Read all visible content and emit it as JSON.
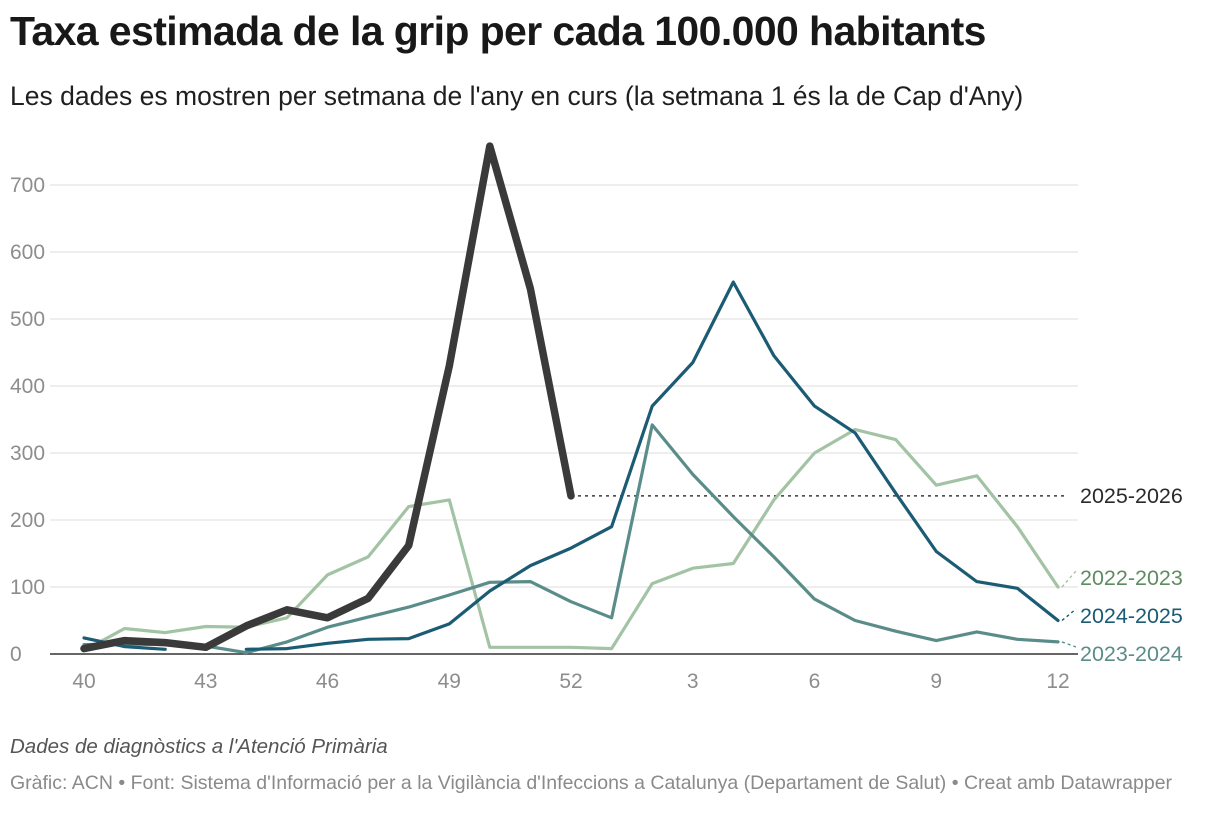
{
  "title": "Taxa estimada de la grip per cada 100.000 habitants",
  "subtitle": "Les dades es mostren per setmana de l'any en curs (la setmana 1 és la de Cap d'Any)",
  "notes": "Dades de diagnòstics a l'Atenció Primària",
  "footer": {
    "text": "Gràfic: ACN • Font: Sistema d'Informació per a la Vigilància d'Infeccions a Catalunya (Departament de Salut) • Creat amb Datawrapper"
  },
  "chart_data": {
    "type": "line",
    "title": "Taxa estimada de la grip per cada 100.000 habitants",
    "subtitle": "Les dades es mostren per setmana de l'any en curs (la setmana 1 és la de Cap d'Any)",
    "x": [
      "40",
      "41",
      "42",
      "43",
      "44",
      "45",
      "46",
      "47",
      "48",
      "49",
      "50",
      "51",
      "52",
      "1",
      "2",
      "3",
      "4",
      "5",
      "6",
      "7",
      "8",
      "9",
      "10",
      "11",
      "12"
    ],
    "x_ticks": [
      "40",
      "43",
      "46",
      "49",
      "52",
      "3",
      "6",
      "9",
      "12"
    ],
    "y_ticks": [
      0,
      100,
      200,
      300,
      400,
      500,
      600,
      700
    ],
    "ylim": [
      0,
      760
    ],
    "grid": true,
    "series": [
      {
        "name": "2022-2023",
        "color": "#a3c3a5",
        "values": [
          5,
          38,
          32,
          41,
          40,
          54,
          118,
          145,
          220,
          230,
          10,
          10,
          10,
          8,
          105,
          128,
          135,
          230,
          300,
          335,
          320,
          252,
          266,
          190,
          100
        ]
      },
      {
        "name": "2023-2024",
        "color": "#5a8d8a",
        "values": [
          14,
          15,
          14,
          12,
          2,
          18,
          40,
          55,
          70,
          88,
          107,
          108,
          78,
          54,
          342,
          268,
          205,
          145,
          82,
          50,
          34,
          20,
          33,
          22,
          18
        ]
      },
      {
        "name": "2024-2025",
        "color": "#1b5b73",
        "values": [
          24,
          11,
          7,
          null,
          7,
          8,
          16,
          22,
          23,
          45,
          94,
          132,
          158,
          190,
          370,
          435,
          555,
          445,
          370,
          330,
          240,
          153,
          108,
          98,
          50
        ]
      },
      {
        "name": "2025-2026",
        "color": "#3a3a3a",
        "values": [
          8,
          20,
          17,
          10,
          42,
          66,
          54,
          83,
          162,
          430,
          758,
          545,
          236,
          null,
          null,
          null,
          null,
          null,
          null,
          null,
          null,
          null,
          null,
          null,
          null
        ]
      }
    ],
    "annotations": [
      {
        "type": "dotted-line",
        "series": "2025-2026",
        "from_week": "52",
        "to_week": "12",
        "value": 236
      }
    ]
  }
}
